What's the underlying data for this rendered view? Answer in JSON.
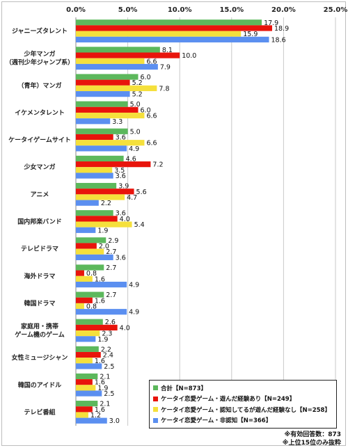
{
  "chart_data": {
    "type": "bar",
    "orientation": "horizontal",
    "categories": [
      [
        "ジャニーズタレント"
      ],
      [
        "少年マンガ",
        "（週刊少年ジャンプ系）"
      ],
      [
        "（青年）マンガ"
      ],
      [
        "イケメンタレント"
      ],
      [
        "ケータイゲームサイト"
      ],
      [
        "少女マンガ"
      ],
      [
        "アニメ"
      ],
      [
        "国内邦楽バンド"
      ],
      [
        "テレビドラマ"
      ],
      [
        "海外ドラマ"
      ],
      [
        "韓国ドラマ"
      ],
      [
        "家庭用・携帯",
        "ゲーム機のゲーム"
      ],
      [
        "女性ミュージシャン"
      ],
      [
        "韓国のアイドル"
      ],
      [
        "テレビ番組"
      ]
    ],
    "series": [
      {
        "name": "合計【N=873】",
        "color": "#5cb85c",
        "values": [
          17.9,
          8.1,
          6.0,
          5.0,
          5.0,
          4.6,
          3.9,
          3.6,
          2.9,
          2.7,
          2.7,
          2.6,
          2.2,
          2.1,
          2.1
        ]
      },
      {
        "name": "ケータイ恋愛ゲーム・遊んだ経験あり【N=249】",
        "color": "#e8140c",
        "values": [
          18.9,
          10.0,
          5.2,
          6.0,
          3.6,
          7.2,
          5.6,
          4.0,
          2.0,
          0.8,
          1.6,
          4.0,
          2.4,
          1.6,
          1.6
        ]
      },
      {
        "name": "ケータイ恋愛ゲーム・認知してるが遊んだ経験なし【N=258】",
        "color": "#f5e03c",
        "values": [
          15.9,
          6.6,
          7.8,
          6.6,
          6.6,
          3.5,
          4.7,
          5.4,
          2.7,
          1.6,
          0.8,
          2.3,
          1.6,
          1.9,
          1.2
        ]
      },
      {
        "name": "ケータイ恋愛ゲーム・非認知【N=366】",
        "color": "#5b8ff0",
        "values": [
          18.6,
          7.9,
          5.2,
          3.3,
          4.9,
          3.6,
          2.2,
          1.9,
          3.6,
          4.9,
          4.9,
          1.9,
          2.5,
          2.5,
          3.0
        ]
      }
    ],
    "xlim": [
      0,
      25
    ],
    "xticks": [
      "0.0%",
      "5.0%",
      "10.0%",
      "15.0%",
      "20.0%",
      "25.0%"
    ],
    "grid": true,
    "legend_position": "bottom-right"
  },
  "notes": [
    "※有効回答数：873",
    "※上位15位のみ抜粋"
  ]
}
